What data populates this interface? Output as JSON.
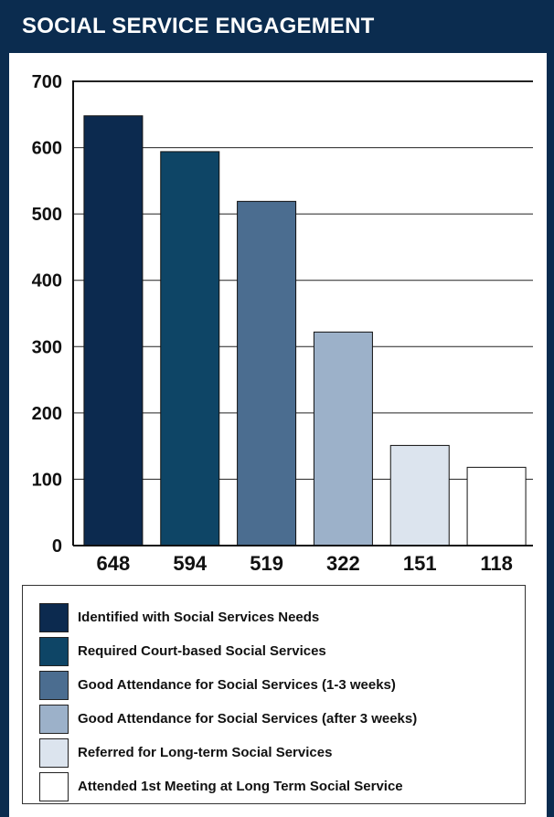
{
  "title": "SOCIAL SERVICE ENGAGEMENT",
  "colors": {
    "frame": "#0b2c4f",
    "bars": [
      "#0c2a4f",
      "#0e4566",
      "#4b6d90",
      "#9cb1c9",
      "#dce4ee",
      "#ffffff"
    ]
  },
  "chart_data": {
    "type": "bar",
    "title": "SOCIAL SERVICE ENGAGEMENT",
    "categories": [
      "Identified with Social Services Needs",
      "Required Court-based Social Services",
      "Good Attendance for Social Services (1-3 weeks)",
      "Good Attendance for Social Services (after 3 weeks)",
      "Referred for Long-term Social Services",
      "Attended 1st Meeting at Long Term Social Service"
    ],
    "values": [
      648,
      594,
      519,
      322,
      151,
      118
    ],
    "value_labels": [
      "648",
      "594",
      "519",
      "322",
      "151",
      "118"
    ],
    "ylim": [
      0,
      700
    ],
    "yticks": [
      "0",
      "100",
      "200",
      "300",
      "400",
      "500",
      "600",
      "700"
    ],
    "grid": true,
    "legend_position": "bottom"
  }
}
